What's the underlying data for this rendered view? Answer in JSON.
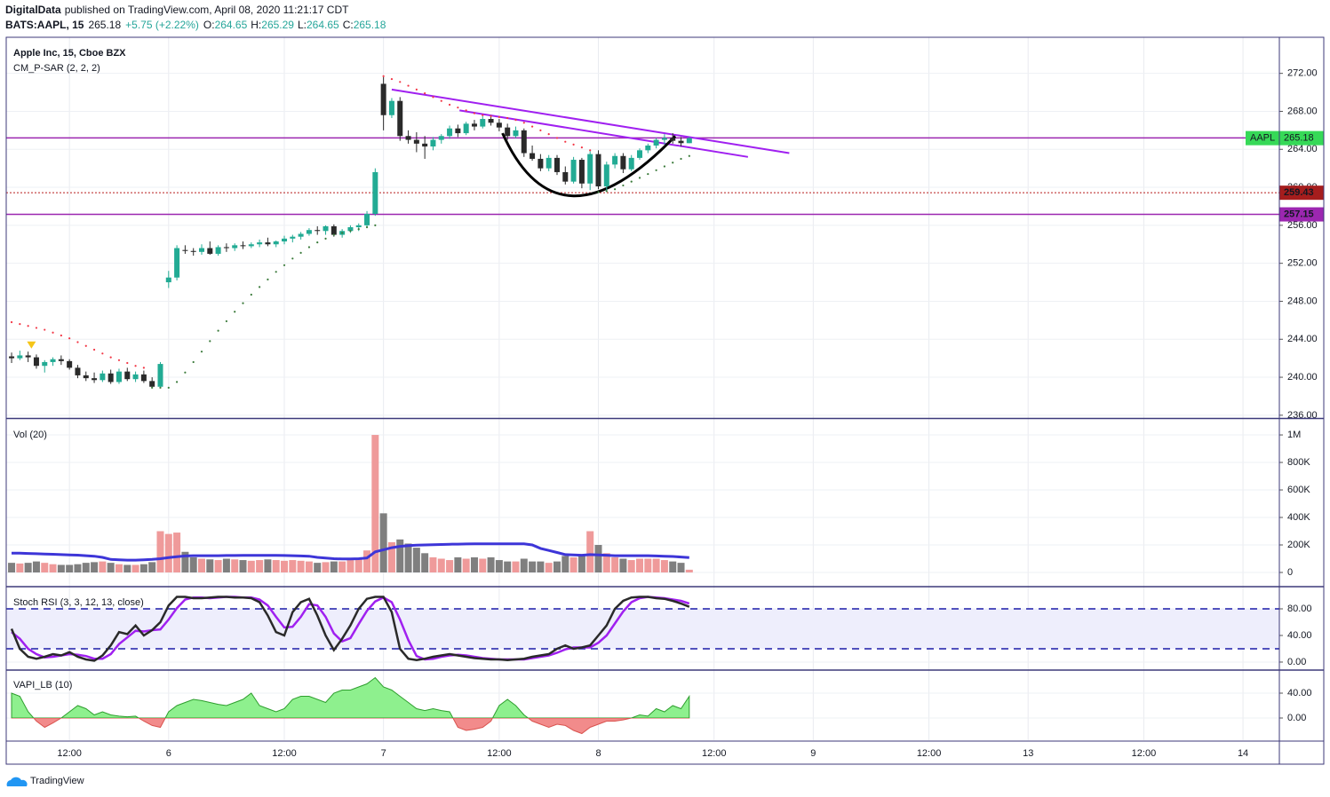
{
  "header": {
    "author": "DigitalData",
    "published": "published on TradingView.com, April 08, 2020 11:21:17 CDT",
    "symbol": "BATS:AAPL, 15",
    "change": "+5.75 (+2.22%)",
    "ohlc_labels": [
      "O:",
      "H:",
      "L:",
      "C:"
    ],
    "change_color": "#26a69a"
  },
  "footer": {
    "brand": "TradingView"
  },
  "chart_data": [
    {
      "type": "candlestick",
      "title": "Apple Inc, 15, Cboe BZX",
      "subtitle": "CM_P-SAR (2, 2, 2)",
      "symbol_label": "AAPL",
      "x": [
        0,
        1,
        2,
        3,
        4,
        5,
        6,
        7,
        8,
        9,
        10,
        11,
        12,
        13,
        14,
        15,
        16,
        17,
        18,
        19,
        20,
        21,
        22,
        23,
        24,
        25,
        26,
        27,
        28,
        29,
        30,
        31,
        32,
        33,
        34,
        35,
        36,
        37,
        38,
        39,
        40,
        41,
        42,
        43,
        44,
        45,
        46,
        47,
        48,
        49,
        50,
        51,
        52,
        53,
        54,
        55,
        56,
        57,
        58,
        59,
        60,
        61,
        62,
        63,
        64,
        65,
        66,
        67,
        68,
        69,
        70,
        71,
        72,
        73,
        74,
        75,
        76,
        77,
        78,
        79,
        80,
        81,
        82
      ],
      "open": [
        242.2,
        242.0,
        242.3,
        242.1,
        241.2,
        241.6,
        241.9,
        241.7,
        241.0,
        240.2,
        239.9,
        239.7,
        240.4,
        239.5,
        240.6,
        239.8,
        240.3,
        239.6,
        239.0,
        250.0,
        250.5,
        253.4,
        253.3,
        253.2,
        253.6,
        253.0,
        253.7,
        253.6,
        253.9,
        253.8,
        254.0,
        254.2,
        254.0,
        254.3,
        254.6,
        254.8,
        255.1,
        255.5,
        255.4,
        255.9,
        255.0,
        255.4,
        255.8,
        256.0,
        257.2,
        270.9,
        267.6,
        269.1,
        265.4,
        265.0,
        264.6,
        264.3,
        265.0,
        265.4,
        266.2,
        265.7,
        266.7,
        266.4,
        267.2,
        266.8,
        266.3,
        265.4,
        266.0,
        263.6,
        263.0,
        262.0,
        263.1,
        261.6,
        260.6,
        262.9,
        260.4,
        263.5,
        260.1,
        262.4,
        263.3,
        261.9,
        263.1,
        263.9,
        264.4,
        265.0,
        265.2,
        264.9,
        264.65
      ],
      "high": [
        242.6,
        242.8,
        242.7,
        242.4,
        241.8,
        242.1,
        242.3,
        241.9,
        241.3,
        240.6,
        240.5,
        240.7,
        240.8,
        240.9,
        241.0,
        240.6,
        240.7,
        240.0,
        241.6,
        251.2,
        253.9,
        253.9,
        253.6,
        254.0,
        254.3,
        253.9,
        254.1,
        254.1,
        254.3,
        254.2,
        254.5,
        254.7,
        254.4,
        254.9,
        255.0,
        255.3,
        255.7,
        255.9,
        256.0,
        256.1,
        255.6,
        256.0,
        256.2,
        257.5,
        262.0,
        271.6,
        269.4,
        269.5,
        266.0,
        265.8,
        265.4,
        265.3,
        265.6,
        266.5,
        266.6,
        266.9,
        267.1,
        267.5,
        267.6,
        267.2,
        266.7,
        266.4,
        266.2,
        264.4,
        263.5,
        263.4,
        263.4,
        262.2,
        263.2,
        263.1,
        263.8,
        263.9,
        262.7,
        263.6,
        263.6,
        263.4,
        264.1,
        264.6,
        265.2,
        265.6,
        265.7,
        265.3,
        265.29
      ],
      "low": [
        241.5,
        241.8,
        241.6,
        240.9,
        240.5,
        241.2,
        241.3,
        240.8,
        239.9,
        239.6,
        239.4,
        239.5,
        239.3,
        239.3,
        239.6,
        239.5,
        239.4,
        238.9,
        238.9,
        249.4,
        250.2,
        253.0,
        252.8,
        252.9,
        252.9,
        252.8,
        253.2,
        253.3,
        253.5,
        253.6,
        253.7,
        253.8,
        253.7,
        254.0,
        254.2,
        254.5,
        254.9,
        255.0,
        255.0,
        254.8,
        254.7,
        255.2,
        255.4,
        255.7,
        257.0,
        266.0,
        267.3,
        264.9,
        264.6,
        263.7,
        263.0,
        263.9,
        264.6,
        265.1,
        265.3,
        265.5,
        266.0,
        266.2,
        266.5,
        265.9,
        265.0,
        265.2,
        263.2,
        262.8,
        261.7,
        261.7,
        261.3,
        260.3,
        260.4,
        259.9,
        259.7,
        259.8,
        259.6,
        262.0,
        261.5,
        261.7,
        262.9,
        263.6,
        264.1,
        264.5,
        264.6,
        264.3,
        264.65
      ],
      "close": [
        242.0,
        242.3,
        242.1,
        241.2,
        241.6,
        241.9,
        241.7,
        241.0,
        240.2,
        239.9,
        239.7,
        240.4,
        239.5,
        240.6,
        239.8,
        240.3,
        239.6,
        239.0,
        241.4,
        250.5,
        253.6,
        253.3,
        253.2,
        253.6,
        253.0,
        253.7,
        253.6,
        253.9,
        253.8,
        254.0,
        254.2,
        254.0,
        254.3,
        254.6,
        254.8,
        255.1,
        255.5,
        255.4,
        255.9,
        255.0,
        255.4,
        255.8,
        256.0,
        257.2,
        261.6,
        267.6,
        269.1,
        265.4,
        265.0,
        264.6,
        264.3,
        265.0,
        265.4,
        266.2,
        265.7,
        266.7,
        266.4,
        267.2,
        266.8,
        266.3,
        265.4,
        266.0,
        263.6,
        263.0,
        262.0,
        263.1,
        261.6,
        260.6,
        262.9,
        260.4,
        263.5,
        260.1,
        262.4,
        263.3,
        261.9,
        263.1,
        263.9,
        264.4,
        265.0,
        265.2,
        264.9,
        264.65,
        265.18
      ],
      "psar": [
        245.8,
        245.6,
        245.4,
        245.2,
        245.0,
        244.7,
        244.4,
        244.1,
        243.7,
        243.3,
        242.9,
        242.5,
        242.1,
        241.8,
        241.5,
        241.2,
        241.0,
        238.9,
        238.9,
        238.9,
        239.5,
        240.5,
        241.6,
        242.7,
        243.8,
        244.9,
        245.9,
        246.9,
        247.8,
        248.7,
        249.5,
        250.3,
        251.1,
        251.8,
        252.5,
        253.1,
        253.7,
        254.2,
        254.6,
        255.0,
        255.2,
        255.4,
        255.6,
        255.8,
        256.0,
        271.7,
        271.4,
        271.1,
        270.7,
        270.3,
        269.9,
        269.5,
        269.1,
        268.7,
        268.4,
        268.1,
        267.8,
        267.6,
        267.5,
        267.4,
        267.3,
        267.1,
        266.8,
        266.4,
        266.0,
        265.6,
        265.2,
        264.8,
        264.5,
        264.2,
        263.9,
        259.5,
        259.6,
        259.8,
        260.2,
        260.6,
        261.0,
        261.4,
        261.8,
        262.2,
        262.6,
        263.0,
        263.3
      ],
      "up_color": "#22ab94",
      "down_color": "#2a2a2a",
      "psar_up_color": "#3a7a3a",
      "psar_down_color": "#f23645",
      "last_price_color": "#36d957",
      "hlines": [
        {
          "value": 265.2,
          "color": "#9c27b0"
        },
        {
          "value": 259.43,
          "color": "#b71c1c",
          "label_color": "#a51d1d",
          "dash": true
        },
        {
          "value": 257.15,
          "color": "#9c27b0",
          "label_color": "#9c27b0"
        }
      ],
      "trendlines": [
        {
          "x": [
            46,
            94.1
          ],
          "y": [
            270.3,
            263.6
          ]
        },
        {
          "x": [
            54.2,
            89.1
          ],
          "y": [
            268.1,
            263.2
          ]
        }
      ],
      "trendline_color": "#a020f0",
      "cup": {
        "x": [
          59.4,
          68.0,
          80.3
        ],
        "y": [
          265.7,
          259.1,
          265.4
        ],
        "color": "#000000"
      },
      "signals": [
        {
          "x": 2.4,
          "y": 243.3,
          "color": "#f5c518"
        }
      ],
      "xlim": [
        -0.65,
        153.4
      ],
      "xticks": [
        {
          "value": 7,
          "label": "12:00"
        },
        {
          "value": 19,
          "label": "6"
        },
        {
          "value": 33,
          "label": "12:00"
        },
        {
          "value": 45,
          "label": "7"
        },
        {
          "value": 59,
          "label": "12:00"
        },
        {
          "value": 71,
          "label": "8"
        },
        {
          "value": 85,
          "label": "12:00"
        },
        {
          "value": 97,
          "label": "9"
        },
        {
          "value": 111,
          "label": "12:00"
        },
        {
          "value": 123,
          "label": "13"
        },
        {
          "value": 137,
          "label": "12:00"
        },
        {
          "value": 149,
          "label": "14"
        }
      ],
      "ylim": [
        235.8,
        275.8
      ],
      "yticks": [
        {
          "value": 236,
          "label": "236.00"
        },
        {
          "value": 240,
          "label": "240.00"
        },
        {
          "value": 244,
          "label": "244.00"
        },
        {
          "value": 248,
          "label": "248.00"
        },
        {
          "value": 252,
          "label": "252.00"
        },
        {
          "value": 256,
          "label": "256.00"
        },
        {
          "value": 260,
          "label": "260.00"
        },
        {
          "value": 264,
          "label": "264.00"
        },
        {
          "value": 268,
          "label": "268.00"
        },
        {
          "value": 272,
          "label": "272.00"
        }
      ]
    },
    {
      "type": "bar",
      "title": "Vol (20)",
      "values": [
        70000,
        65000,
        70000,
        80000,
        70000,
        60000,
        55000,
        55000,
        60000,
        70000,
        75000,
        80000,
        70000,
        60000,
        55000,
        55000,
        60000,
        75000,
        300000,
        280000,
        290000,
        150000,
        110000,
        100000,
        95000,
        90000,
        100000,
        95000,
        90000,
        85000,
        90000,
        95000,
        90000,
        85000,
        90000,
        85000,
        80000,
        70000,
        75000,
        80000,
        80000,
        90000,
        100000,
        160000,
        1000000,
        430000,
        220000,
        240000,
        210000,
        180000,
        140000,
        110000,
        100000,
        90000,
        110000,
        100000,
        110000,
        100000,
        110000,
        90000,
        80000,
        80000,
        100000,
        80000,
        80000,
        70000,
        80000,
        120000,
        110000,
        120000,
        300000,
        200000,
        140000,
        110000,
        100000,
        90000,
        100000,
        100000,
        100000,
        90000,
        80000,
        70000,
        20000
      ],
      "ma_values": [
        140000,
        140000,
        138000,
        136000,
        134000,
        132000,
        130000,
        128000,
        126000,
        122000,
        118000,
        110000,
        95000,
        92000,
        90000,
        90000,
        92000,
        95000,
        100000,
        108000,
        115000,
        120000,
        122000,
        122000,
        122000,
        122000,
        123000,
        123000,
        124000,
        124000,
        124000,
        124000,
        124000,
        123000,
        122000,
        120000,
        118000,
        110000,
        105000,
        100000,
        98000,
        98000,
        100000,
        105000,
        150000,
        165000,
        180000,
        190000,
        195000,
        198000,
        200000,
        202000,
        203000,
        205000,
        206000,
        207000,
        208000,
        208000,
        208000,
        208000,
        208000,
        208000,
        208000,
        200000,
        175000,
        160000,
        145000,
        130000,
        128000,
        125000,
        130000,
        128000,
        125000,
        122000,
        122000,
        122000,
        122000,
        122000,
        120000,
        118000,
        116000,
        112000,
        108000
      ],
      "up_color": "#ef9a9a",
      "down_color": "#7f7f7f",
      "ma_color": "#3d35d8",
      "ylim": [
        -96800,
        1110000
      ],
      "yticks": [
        0,
        {
          "value": 200000,
          "label": "200K"
        },
        {
          "value": 400000,
          "label": "400K"
        },
        {
          "value": 600000,
          "label": "600K"
        },
        {
          "value": 800000,
          "label": "800K"
        },
        {
          "value": 1000000,
          "label": "1M"
        }
      ]
    },
    {
      "type": "line",
      "title": "Stoch RSI (3, 3, 12, 13, close)",
      "series": [
        {
          "color": "#2a2a2a",
          "values": [
            50,
            20,
            8,
            5,
            8,
            12,
            10,
            15,
            8,
            4,
            2,
            10,
            25,
            45,
            42,
            55,
            40,
            48,
            60,
            85,
            98,
            98,
            96,
            96,
            97,
            98,
            98,
            97,
            97,
            96,
            90,
            70,
            45,
            40,
            75,
            90,
            95,
            70,
            40,
            18,
            35,
            55,
            80,
            95,
            98,
            98,
            75,
            20,
            5,
            3,
            5,
            8,
            10,
            12,
            10,
            8,
            6,
            5,
            4,
            4,
            3,
            4,
            5,
            8,
            10,
            12,
            20,
            25,
            20,
            22,
            25,
            40,
            55,
            80,
            92,
            97,
            98,
            98,
            96,
            95,
            92,
            88,
            83
          ]
        },
        {
          "color": "#a020f0",
          "values": [
            45,
            35,
            20,
            12,
            7,
            8,
            10,
            12,
            11,
            9,
            5,
            5,
            12,
            27,
            37,
            47,
            46,
            48,
            49,
            64,
            81,
            94,
            97,
            97,
            96,
            97,
            98,
            98,
            97,
            97,
            94,
            85,
            68,
            52,
            53,
            68,
            87,
            85,
            68,
            43,
            31,
            36,
            57,
            77,
            91,
            97,
            90,
            64,
            33,
            9,
            4,
            5,
            8,
            10,
            11,
            10,
            8,
            6,
            5,
            4,
            4,
            4,
            4,
            6,
            8,
            10,
            14,
            19,
            22,
            22,
            22,
            29,
            40,
            58,
            76,
            90,
            96,
            98,
            97,
            96,
            94,
            92,
            88
          ]
        }
      ],
      "bands": [
        20,
        80
      ],
      "band_color": "#1c1ca8",
      "band_fill": "#eeeefc",
      "ylim": [
        -10.7,
        112
      ],
      "yticks": [
        {
          "value": 0,
          "label": "0.00"
        },
        {
          "value": 40,
          "label": "40.00"
        },
        {
          "value": 80,
          "label": "80.00"
        }
      ]
    },
    {
      "type": "area",
      "title": "VAPI_LB (10)",
      "values": [
        40,
        35,
        10,
        -5,
        -15,
        -8,
        0,
        10,
        20,
        15,
        5,
        10,
        5,
        3,
        2,
        3,
        -5,
        -12,
        -15,
        10,
        20,
        25,
        30,
        28,
        25,
        22,
        20,
        25,
        30,
        40,
        20,
        15,
        10,
        15,
        30,
        35,
        35,
        30,
        25,
        40,
        45,
        45,
        50,
        55,
        65,
        50,
        45,
        35,
        25,
        15,
        12,
        15,
        12,
        10,
        -15,
        -20,
        -18,
        -15,
        -5,
        20,
        30,
        20,
        5,
        -5,
        -10,
        -15,
        -10,
        -12,
        -20,
        -25,
        -15,
        -10,
        -5,
        -5,
        -3,
        0,
        5,
        3,
        15,
        10,
        20,
        15,
        35
      ],
      "pos_color": "#8ef08e",
      "neg_color": "#f28b8b",
      "pos_line": "#2e9e2e",
      "neg_line": "#d9534f",
      "ylim": [
        -35.7,
        75.7
      ],
      "yticks": [
        {
          "value": 0,
          "label": "0.00"
        },
        {
          "value": 40,
          "label": "40.00"
        }
      ]
    }
  ]
}
